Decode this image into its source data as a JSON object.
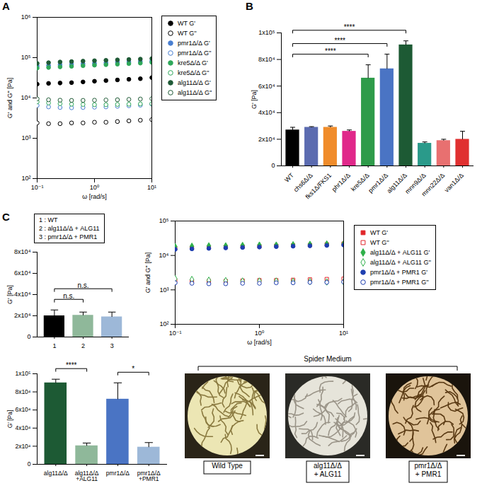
{
  "chart_data": [
    {
      "panel": "A",
      "type": "scatter",
      "xlabel": "ω [rad/s]",
      "ylabel": "G' and G'' [Pa]",
      "log": true,
      "legend": "right",
      "xlim": [
        0.1,
        10
      ],
      "xticks": [
        {
          "value": 0.1,
          "label": "10⁻¹"
        },
        {
          "value": 1,
          "label": "10⁰"
        },
        {
          "value": 10,
          "label": "10¹"
        }
      ],
      "ylim": [
        100,
        1000000
      ],
      "yticks": [
        {
          "value": 100,
          "label": "10²"
        },
        {
          "value": 1000,
          "label": "10³"
        },
        {
          "value": 10000,
          "label": "10⁴"
        },
        {
          "value": 100000,
          "label": "10⁵"
        },
        {
          "value": 1000000,
          "label": "10⁶"
        }
      ],
      "x": [
        0.1,
        0.158,
        0.251,
        0.398,
        0.631,
        1,
        1.585,
        2.512,
        3.981,
        6.31,
        10
      ],
      "series": [
        {
          "name": "WT G'",
          "color": "#000000",
          "marker": "circle",
          "values": [
            22000,
            23000,
            23500,
            24000,
            25000,
            26000,
            27000,
            28000,
            29000,
            30000,
            32000
          ]
        },
        {
          "name": "WT G''",
          "color": "#000000",
          "marker": "circle-open",
          "values": [
            2400,
            2300,
            2300,
            2400,
            2400,
            2500,
            2500,
            2600,
            2700,
            2800,
            2900
          ]
        },
        {
          "name": "pmr1Δ/Δ G'",
          "color": "#4a7fd0",
          "marker": "circle",
          "values": [
            62000,
            64000,
            66000,
            68000,
            70000,
            72000,
            74000,
            76000,
            78000,
            80000,
            82000
          ]
        },
        {
          "name": "pmr1Δ/Δ G''",
          "color": "#4a7fd0",
          "marker": "circle-open",
          "values": [
            6500,
            6000,
            5800,
            5700,
            5800,
            5900,
            6000,
            6200,
            6400,
            6600,
            7000
          ]
        },
        {
          "name": "kre5Δ/Δ G'",
          "color": "#2fa85a",
          "marker": "circle",
          "values": [
            55000,
            57000,
            59000,
            61000,
            63000,
            65000,
            67000,
            69000,
            71000,
            73000,
            76000
          ]
        },
        {
          "name": "kre5Δ/Δ G''",
          "color": "#2fa85a",
          "marker": "circle-open",
          "values": [
            8000,
            7500,
            7200,
            7000,
            6900,
            6800,
            6800,
            6900,
            7000,
            7100,
            7200
          ]
        },
        {
          "name": "alg11Δ/Δ G'",
          "color": "#1f5a36",
          "marker": "circle",
          "values": [
            72000,
            75000,
            78000,
            80000,
            82000,
            84000,
            86000,
            88000,
            90000,
            92000,
            95000
          ]
        },
        {
          "name": "alg11Δ/Δ G''",
          "color": "#1f5a36",
          "marker": "circle-open",
          "values": [
            9500,
            9000,
            8800,
            8700,
            8700,
            8800,
            8900,
            9000,
            9200,
            9400,
            9600
          ]
        }
      ]
    },
    {
      "panel": "B",
      "type": "bar",
      "ylabel": "G' [Pa]",
      "categories": [
        "WT",
        "chs6Δ/Δ",
        "fks1Δ/FKS1",
        "phr1Δ/Δ",
        "kre5Δ/Δ",
        "pmr1Δ/Δ",
        "alg11Δ/Δ",
        "mnn9Δ/Δ",
        "mnn22Δ/Δ",
        "van1Δ/Δ"
      ],
      "values": [
        27000,
        29000,
        29000,
        26000,
        66000,
        73000,
        91000,
        17000,
        19000,
        20000
      ],
      "errors": [
        2000,
        500,
        1000,
        1000,
        10000,
        11000,
        3000,
        1000,
        1000,
        6000
      ],
      "colors": [
        "#000000",
        "#5b6bb0",
        "#f08c2b",
        "#e0288a",
        "#2e9b4a",
        "#4a74c4",
        "#1d5a34",
        "#2a9a8a",
        "#e87070",
        "#e03030"
      ],
      "ylim": [
        0,
        100000
      ],
      "yticks": [
        0,
        {
          "value": 20000,
          "label": "2x10⁴"
        },
        {
          "value": 40000,
          "label": "4x10⁴"
        },
        {
          "value": 60000,
          "label": "6x10⁴"
        },
        {
          "value": 80000,
          "label": "8x10⁴"
        },
        {
          "value": 100000,
          "label": "1x10⁵"
        }
      ],
      "comparisons": [
        {
          "from": "WT",
          "to": "kre5Δ/Δ",
          "label": "****"
        },
        {
          "from": "WT",
          "to": "pmr1Δ/Δ",
          "label": "****"
        },
        {
          "from": "WT",
          "to": "alg11Δ/Δ",
          "label": "****"
        }
      ]
    },
    {
      "panel": "C",
      "type": "bar",
      "ylabel": "G' [Pa]",
      "categories": [
        "1",
        "2",
        "3"
      ],
      "key_labels": [
        "1 : WT",
        "2 : alg11Δ/Δ + ALG11",
        "3 : pmr1Δ/Δ + PMR1"
      ],
      "values": [
        20000,
        20500,
        19000
      ],
      "errors": [
        5500,
        3000,
        4500
      ],
      "colors": [
        "#000000",
        "#8fb89a",
        "#9db8d8"
      ],
      "ylim": [
        0,
        80000
      ],
      "yticks": [
        0,
        {
          "value": 20000,
          "label": "2x10⁴"
        },
        {
          "value": 40000,
          "label": "4x10⁴"
        },
        {
          "value": 60000,
          "label": "6x10⁴"
        },
        {
          "value": 80000,
          "label": "8x10⁴"
        }
      ],
      "comparisons": [
        {
          "from": "1",
          "to": "2",
          "label": "n.s."
        },
        {
          "from": "1",
          "to": "3",
          "label": "n.s."
        }
      ]
    },
    {
      "type": "scatter",
      "xlabel": "ω [rad/s]",
      "ylabel": "G' and G'' [Pa]",
      "log": true,
      "legend": "right",
      "xlim": [
        0.1,
        10
      ],
      "xticks": [
        {
          "value": 0.1,
          "label": "10⁻¹"
        },
        {
          "value": 1,
          "label": "10⁰"
        },
        {
          "value": 10,
          "label": "10¹"
        }
      ],
      "ylim": [
        100,
        100000
      ],
      "yticks": [
        {
          "value": 100,
          "label": "10²"
        },
        {
          "value": 1000,
          "label": "10³"
        },
        {
          "value": 10000,
          "label": "10⁴"
        },
        {
          "value": 100000,
          "label": "10⁵"
        }
      ],
      "x": [
        0.1,
        0.158,
        0.251,
        0.398,
        0.631,
        1,
        1.585,
        2.512,
        3.981,
        6.31,
        10
      ],
      "series": [
        {
          "name": "WT G'",
          "color": "#e0262a",
          "marker": "square",
          "values": [
            16000,
            16500,
            17000,
            17500,
            18000,
            18500,
            19000,
            19500,
            20000,
            21000,
            22000
          ]
        },
        {
          "name": "WT G''",
          "color": "#e0262a",
          "marker": "square-open",
          "values": [
            1900,
            1800,
            1800,
            1800,
            1850,
            1900,
            1900,
            1950,
            2000,
            2050,
            2100
          ]
        },
        {
          "name": "alg11Δ/Δ + ALG11 G'",
          "color": "#2fb04a",
          "marker": "diamond",
          "values": [
            18000,
            18500,
            19000,
            19000,
            19500,
            20000,
            20000,
            20500,
            21000,
            21500,
            22000
          ]
        },
        {
          "name": "alg11Δ/Δ + ALG11 G''",
          "color": "#2fb04a",
          "marker": "diamond-open",
          "values": [
            2100,
            2000,
            1900,
            1850,
            1800,
            1800,
            1800,
            1750,
            1750,
            1700,
            1700
          ]
        },
        {
          "name": "pmr1Δ/Δ + PMR1 G'",
          "color": "#1f3fb0",
          "marker": "circle",
          "values": [
            15000,
            15500,
            16000,
            16500,
            17000,
            17500,
            18000,
            18500,
            19000,
            19500,
            20000
          ]
        },
        {
          "name": "pmr1Δ/Δ + PMR1 G''",
          "color": "#1f3fb0",
          "marker": "circle-open",
          "values": [
            1600,
            1550,
            1500,
            1500,
            1550,
            1550,
            1600,
            1600,
            1650,
            1650,
            1700
          ]
        }
      ]
    },
    {
      "type": "bar",
      "ylabel": "G' [Pa]",
      "categories": [
        "alg11Δ/Δ",
        "alg11Δ/Δ +ALG11",
        "pmr1Δ/Δ",
        "pmr1Δ/Δ +PMR1"
      ],
      "values": [
        90000,
        20500,
        72000,
        19000
      ],
      "errors": [
        4000,
        3000,
        18000,
        5000
      ],
      "colors": [
        "#1d5a34",
        "#8fb89a",
        "#4a74c4",
        "#9db8d8"
      ],
      "ylim": [
        0,
        100000
      ],
      "yticks": [
        0,
        {
          "value": 20000,
          "label": "2x10⁴"
        },
        {
          "value": 40000,
          "label": "4x10⁴"
        },
        {
          "value": 60000,
          "label": "6x10⁴"
        },
        {
          "value": 80000,
          "label": "8x10⁴"
        },
        {
          "value": 100000,
          "label": "1x10⁵"
        }
      ],
      "comparisons": [
        {
          "from": "alg11Δ/Δ",
          "to": "alg11Δ/Δ +ALG11",
          "label": "****"
        },
        {
          "from": "pmr1Δ/Δ",
          "to": "pmr1Δ/Δ +PMR1",
          "label": "*"
        }
      ]
    }
  ],
  "images": {
    "title": "Spider Medium",
    "labels": [
      "Wild Type",
      "alg11Δ/Δ + ALG11",
      "pmr1Δ/Δ + PMR1"
    ]
  }
}
